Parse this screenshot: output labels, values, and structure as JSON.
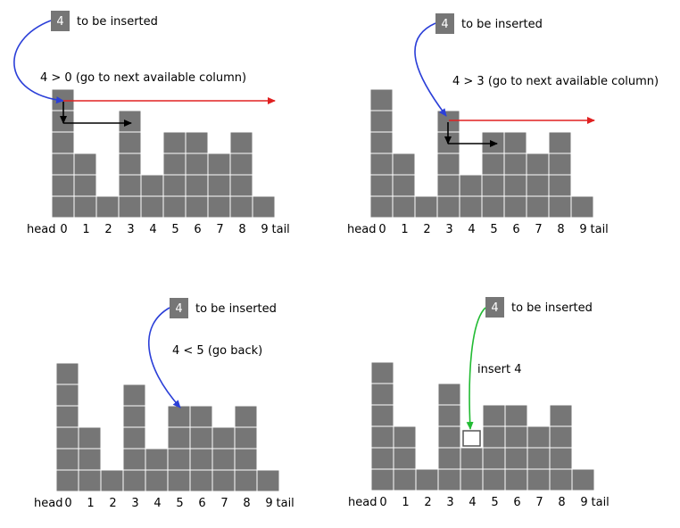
{
  "colors": {
    "cell_fill": "#767676",
    "cell_border": "#ffffff",
    "arrow_blue": "#2b3fd8",
    "arrow_red": "#e02020",
    "arrow_black": "#000000",
    "arrow_green": "#22bb33",
    "text": "#000000",
    "inserted_box_fill": "#ffffff",
    "inserted_box_border": "#555555"
  },
  "panels": [
    {
      "element_value": "4",
      "element_caption": "to be inserted",
      "annotation": "4 > 0 (go to next available column)",
      "heights": [
        6,
        3,
        1,
        5,
        2,
        4,
        4,
        3,
        4,
        1
      ],
      "head_label": "head",
      "tail_label": "tail",
      "column_labels": [
        "0",
        "1",
        "2",
        "3",
        "4",
        "5",
        "6",
        "7",
        "8",
        "9"
      ]
    },
    {
      "element_value": "4",
      "element_caption": "to be inserted",
      "annotation": "4 > 3 (go to next available column)",
      "heights": [
        6,
        3,
        1,
        5,
        2,
        4,
        4,
        3,
        4,
        1
      ],
      "head_label": "head",
      "tail_label": "tail",
      "column_labels": [
        "0",
        "1",
        "2",
        "3",
        "4",
        "5",
        "6",
        "7",
        "8",
        "9"
      ]
    },
    {
      "element_value": "4",
      "element_caption": "to be inserted",
      "annotation": "4 < 5 (go back)",
      "heights": [
        6,
        3,
        1,
        5,
        2,
        4,
        4,
        3,
        4,
        1
      ],
      "head_label": "head",
      "tail_label": "tail",
      "column_labels": [
        "0",
        "1",
        "2",
        "3",
        "4",
        "5",
        "6",
        "7",
        "8",
        "9"
      ]
    },
    {
      "element_value": "4",
      "element_caption": "to be inserted",
      "annotation": "insert 4",
      "heights": [
        6,
        3,
        1,
        5,
        2,
        4,
        4,
        3,
        4,
        1
      ],
      "inserted_column": 4,
      "head_label": "head",
      "tail_label": "tail",
      "column_labels": [
        "0",
        "1",
        "2",
        "3",
        "4",
        "5",
        "6",
        "7",
        "8",
        "9"
      ]
    }
  ]
}
